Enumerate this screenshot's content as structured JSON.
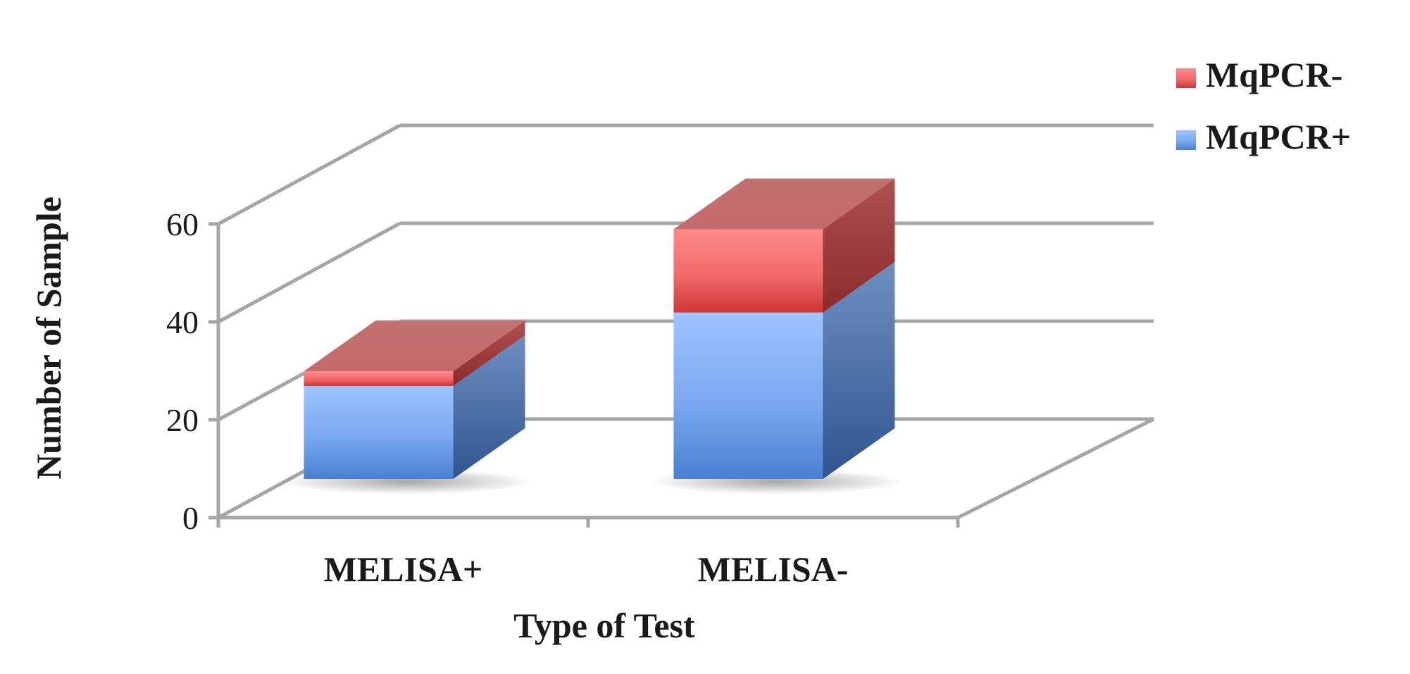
{
  "chart_data": {
    "type": "bar",
    "stacked": true,
    "three_d": true,
    "title": "",
    "xlabel": "Type of Test",
    "ylabel": "Number of Sample",
    "categories": [
      "MELISA+",
      "MELISA-"
    ],
    "series": [
      {
        "name": "MqPCR+",
        "values": [
          19,
          34
        ],
        "color": "#6fa3ee"
      },
      {
        "name": "MqPCR-",
        "values": [
          3,
          17
        ],
        "color": "#e0545a"
      }
    ],
    "ylim": [
      0,
      60
    ],
    "yticks": [
      "0",
      "20",
      "40",
      "60"
    ],
    "grid": true,
    "legend_position": "top-right",
    "legend_order": [
      "MqPCR-",
      "MqPCR+"
    ]
  }
}
